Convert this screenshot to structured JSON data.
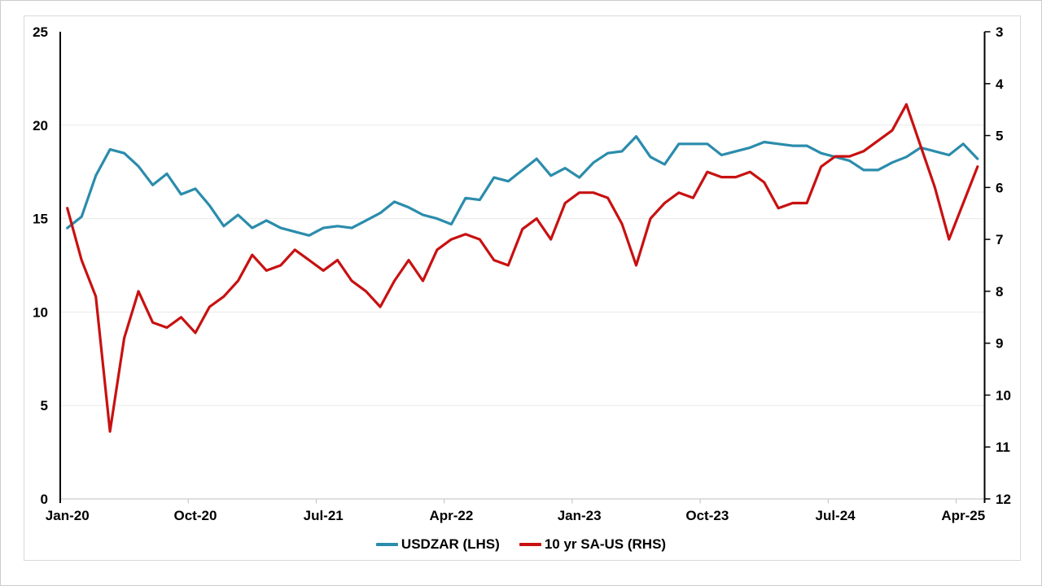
{
  "chart_data": {
    "type": "line",
    "title": "",
    "months": [
      "Jan-20",
      "Feb-20",
      "Mar-20",
      "Apr-20",
      "May-20",
      "Jun-20",
      "Jul-20",
      "Aug-20",
      "Sep-20",
      "Oct-20",
      "Nov-20",
      "Dec-20",
      "Jan-21",
      "Feb-21",
      "Mar-21",
      "Apr-21",
      "May-21",
      "Jun-21",
      "Jul-21",
      "Aug-21",
      "Sep-21",
      "Oct-21",
      "Nov-21",
      "Dec-21",
      "Jan-22",
      "Feb-22",
      "Mar-22",
      "Apr-22",
      "May-22",
      "Jun-22",
      "Jul-22",
      "Aug-22",
      "Sep-22",
      "Oct-22",
      "Nov-22",
      "Dec-22",
      "Jan-23",
      "Feb-23",
      "Mar-23",
      "Apr-23",
      "May-23",
      "Jun-23",
      "Jul-23",
      "Aug-23",
      "Sep-23",
      "Oct-23",
      "Nov-23",
      "Dec-23",
      "Jan-24",
      "Feb-24",
      "Mar-24",
      "Apr-24",
      "May-24",
      "Jun-24",
      "Jul-24",
      "Aug-24",
      "Sep-24",
      "Oct-24",
      "Nov-24",
      "Dec-24",
      "Jan-25",
      "Feb-25",
      "Mar-25",
      "Apr-25",
      "May-25"
    ],
    "x_tick_indices": [
      0,
      9,
      18,
      27,
      36,
      45,
      54,
      63
    ],
    "x_tick_labels": [
      "Jan-20",
      "Oct-20",
      "Jul-21",
      "Apr-22",
      "Jan-23",
      "Oct-23",
      "Jul-24",
      "Apr-25"
    ],
    "series": [
      {
        "name": "USDZAR (LHS)",
        "axis": "left",
        "color": "#2B8CAC",
        "values": [
          14.5,
          15.1,
          17.3,
          18.7,
          18.5,
          17.8,
          16.8,
          17.4,
          16.3,
          16.6,
          15.7,
          14.6,
          15.2,
          14.5,
          14.9,
          14.5,
          14.3,
          14.1,
          14.5,
          14.6,
          14.5,
          14.9,
          15.3,
          15.9,
          15.6,
          15.2,
          15.0,
          14.7,
          16.1,
          16.0,
          17.2,
          17.0,
          17.6,
          18.2,
          17.3,
          17.7,
          17.2,
          18.0,
          18.5,
          18.6,
          19.4,
          18.3,
          17.9,
          19.0,
          19.0,
          19.0,
          18.4,
          18.6,
          18.8,
          19.1,
          19.0,
          18.9,
          18.9,
          18.5,
          18.3,
          18.1,
          17.6,
          17.6,
          18.0,
          18.3,
          18.8,
          18.6,
          18.4,
          19.0,
          18.2
        ]
      },
      {
        "name": "10 yr SA-US (RHS)",
        "axis": "right",
        "color": "#C81111",
        "values": [
          6.4,
          7.4,
          8.1,
          10.7,
          8.9,
          8.0,
          8.6,
          8.7,
          8.5,
          8.8,
          8.3,
          8.1,
          7.8,
          7.3,
          7.6,
          7.5,
          7.2,
          7.4,
          7.6,
          7.4,
          7.8,
          8.0,
          8.3,
          7.8,
          7.4,
          7.8,
          7.2,
          7.0,
          6.9,
          7.0,
          7.4,
          7.5,
          6.8,
          6.6,
          7.0,
          6.3,
          6.1,
          6.1,
          6.2,
          6.7,
          7.5,
          6.6,
          6.3,
          6.1,
          6.2,
          5.7,
          5.8,
          5.8,
          5.7,
          5.9,
          6.4,
          6.3,
          6.3,
          5.6,
          5.4,
          5.4,
          5.3,
          5.1,
          4.9,
          4.4,
          5.2,
          6.0,
          7.0,
          6.3,
          5.6
        ]
      }
    ],
    "left_axis": {
      "min": 0,
      "max": 25,
      "ticks": [
        0,
        5,
        10,
        15,
        20,
        25
      ],
      "inverted": false
    },
    "right_axis": {
      "min": 3,
      "max": 12,
      "ticks": [
        3,
        4,
        5,
        6,
        7,
        8,
        9,
        10,
        11,
        12
      ],
      "inverted": true
    },
    "legend_position": "bottom-center",
    "grid": "horizontal",
    "styles": {
      "gridline_color": "#e9e9e9",
      "y_axis_color": "#000000",
      "x_axis_color": "#bfbfbf",
      "frame_color": "#d9d9d9",
      "text_color": "#000000"
    }
  }
}
